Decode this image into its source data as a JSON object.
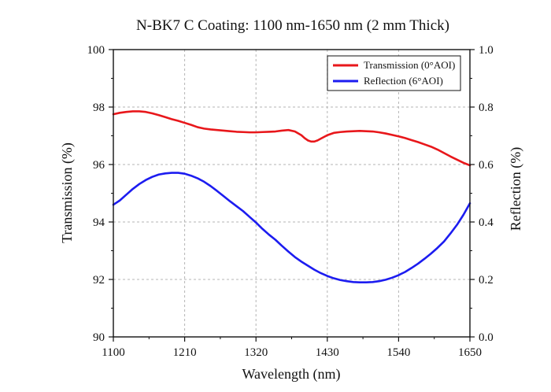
{
  "chart_data": {
    "type": "line",
    "title": "N-BK7 C Coating: 1100 nm-1650 nm (2 mm Thick)",
    "xlabel": "Wavelength (nm)",
    "ylabel_left": "Transmission (%)",
    "ylabel_right": "Reflection (%)",
    "xlim": [
      1100,
      1650
    ],
    "ylim_left": [
      90,
      100
    ],
    "ylim_right": [
      0.0,
      1.0
    ],
    "x_ticks": [
      "1100",
      "1210",
      "1320",
      "1430",
      "1540",
      "1650"
    ],
    "y_left_ticks": [
      "90",
      "92",
      "94",
      "96",
      "98",
      "100"
    ],
    "y_right_ticks": [
      "0.0",
      "0.2",
      "0.4",
      "0.6",
      "0.8",
      "1.0"
    ],
    "grid": true,
    "legend_position": "top-right",
    "series": [
      {
        "name": "Transmission (0°AOI)",
        "axis": "left",
        "color": "#e8171b",
        "x": [
          1100,
          1110,
          1120,
          1130,
          1140,
          1150,
          1160,
          1170,
          1180,
          1190,
          1200,
          1210,
          1220,
          1230,
          1240,
          1250,
          1260,
          1270,
          1280,
          1290,
          1300,
          1310,
          1320,
          1330,
          1340,
          1350,
          1360,
          1370,
          1380,
          1390,
          1395,
          1400,
          1405,
          1410,
          1415,
          1420,
          1430,
          1440,
          1450,
          1460,
          1470,
          1480,
          1490,
          1500,
          1510,
          1520,
          1530,
          1540,
          1550,
          1560,
          1570,
          1580,
          1590,
          1600,
          1610,
          1620,
          1630,
          1640,
          1650
        ],
        "values": [
          97.75,
          97.8,
          97.83,
          97.85,
          97.85,
          97.83,
          97.78,
          97.72,
          97.65,
          97.58,
          97.52,
          97.45,
          97.38,
          97.3,
          97.25,
          97.22,
          97.2,
          97.18,
          97.16,
          97.14,
          97.13,
          97.12,
          97.12,
          97.13,
          97.14,
          97.15,
          97.18,
          97.2,
          97.15,
          97.02,
          96.92,
          96.84,
          96.8,
          96.8,
          96.84,
          96.9,
          97.02,
          97.1,
          97.13,
          97.15,
          97.16,
          97.17,
          97.16,
          97.15,
          97.12,
          97.08,
          97.03,
          96.98,
          96.92,
          96.85,
          96.78,
          96.7,
          96.62,
          96.52,
          96.4,
          96.28,
          96.17,
          96.06,
          95.97
        ]
      },
      {
        "name": "Reflection (6°AOI)",
        "axis": "right",
        "color": "#1c1cf0",
        "x": [
          1100,
          1110,
          1120,
          1130,
          1140,
          1150,
          1160,
          1170,
          1180,
          1190,
          1200,
          1210,
          1220,
          1230,
          1240,
          1250,
          1260,
          1270,
          1280,
          1290,
          1300,
          1310,
          1320,
          1330,
          1340,
          1350,
          1360,
          1370,
          1380,
          1390,
          1400,
          1410,
          1420,
          1430,
          1440,
          1450,
          1460,
          1470,
          1480,
          1490,
          1500,
          1510,
          1520,
          1530,
          1540,
          1550,
          1560,
          1570,
          1580,
          1590,
          1600,
          1610,
          1620,
          1630,
          1640,
          1650
        ],
        "values": [
          0.46,
          0.475,
          0.495,
          0.515,
          0.532,
          0.546,
          0.557,
          0.565,
          0.569,
          0.571,
          0.571,
          0.568,
          0.561,
          0.552,
          0.54,
          0.525,
          0.508,
          0.49,
          0.472,
          0.455,
          0.438,
          0.418,
          0.398,
          0.376,
          0.356,
          0.338,
          0.317,
          0.297,
          0.278,
          0.262,
          0.248,
          0.234,
          0.222,
          0.212,
          0.204,
          0.198,
          0.194,
          0.191,
          0.19,
          0.19,
          0.191,
          0.194,
          0.199,
          0.206,
          0.215,
          0.226,
          0.24,
          0.255,
          0.272,
          0.29,
          0.31,
          0.332,
          0.36,
          0.39,
          0.425,
          0.465
        ]
      }
    ]
  }
}
